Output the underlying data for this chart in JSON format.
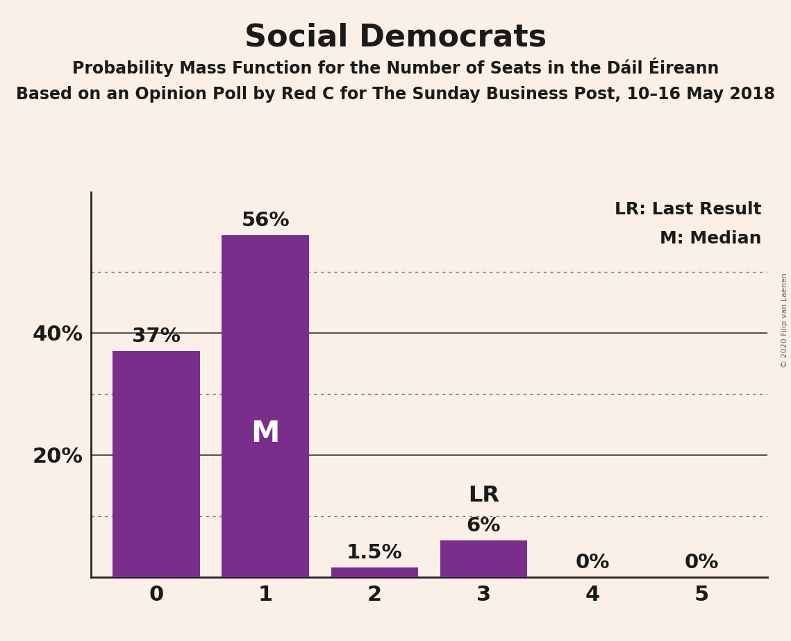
{
  "title": "Social Democrats",
  "subtitle1": "Probability Mass Function for the Number of Seats in the Dáil Éireann",
  "subtitle2": "Based on an Opinion Poll by Red C for The Sunday Business Post, 10–16 May 2018",
  "watermark": "© 2020 Filip van Laenen",
  "categories": [
    0,
    1,
    2,
    3,
    4,
    5
  ],
  "values": [
    0.37,
    0.56,
    0.015,
    0.06,
    0.0,
    0.0
  ],
  "bar_labels": [
    "37%",
    "56%",
    "1.5%",
    "6%",
    "0%",
    "0%"
  ],
  "bar_color": "#7B2D8B",
  "background_color": "#FAF0E8",
  "median_bar": 1,
  "lr_bar": 3,
  "legend_lr": "LR: Last Result",
  "legend_m": "M: Median",
  "yticks": [
    0.2,
    0.4
  ],
  "ytick_labels": [
    "20%",
    "40%"
  ],
  "ylim": [
    0,
    0.63
  ],
  "dotted_gridlines": [
    0.1,
    0.3,
    0.5
  ],
  "solid_gridlines": [
    0.2,
    0.4
  ],
  "title_fontsize": 32,
  "subtitle_fontsize": 17,
  "tick_label_fontsize": 22,
  "bar_label_fontsize": 21,
  "legend_fontsize": 18,
  "watermark_fontsize": 8
}
